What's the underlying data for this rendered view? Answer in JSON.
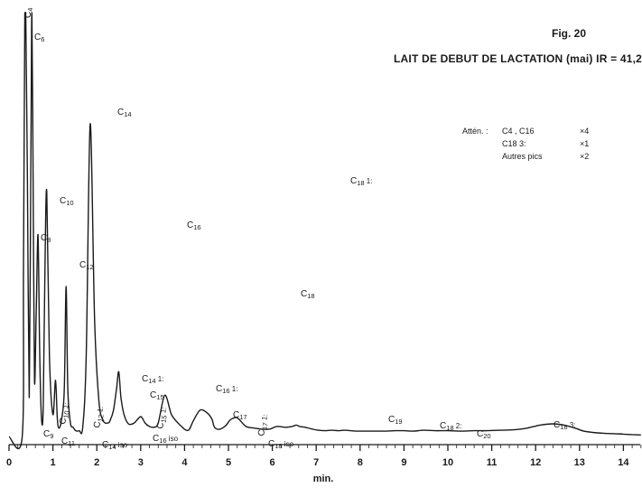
{
  "figure_label": "Fig. 20",
  "title": "LAIT DE DEBUT DE LACTATION (mai)  IR = 41,2",
  "attenuation": {
    "heading": "Attén. :",
    "rows": [
      {
        "label": "C4 , C16",
        "factor": "×4"
      },
      {
        "label": "C18 3:",
        "factor": "×1"
      },
      {
        "label": "Autres pics",
        "factor": "×2"
      }
    ]
  },
  "chart_data": {
    "type": "line",
    "title": "LAIT DE DEBUT DE LACTATION (mai)  IR = 41,2",
    "xlabel": "min.",
    "ylabel": "",
    "xlim": [
      0,
      14.4
    ],
    "ylim": [
      0,
      100
    ],
    "x_ticks": [
      0,
      1,
      2,
      3,
      4,
      5,
      6,
      7,
      8,
      9,
      10,
      11,
      12,
      13,
      14
    ],
    "grid": false,
    "series": [
      {
        "x": [
          0,
          0.3,
          0.33,
          0.36,
          0.38,
          0.42,
          0.46,
          0.5,
          0.52,
          0.55,
          0.58,
          0.62,
          0.66,
          0.7,
          0.74,
          0.78,
          0.82,
          0.86,
          0.92,
          1.0,
          1.06,
          1.1,
          1.14,
          1.2,
          1.26,
          1.3,
          1.34,
          1.4,
          1.46,
          1.52,
          1.6,
          1.68,
          1.76,
          1.85,
          1.95,
          2.05,
          2.15,
          2.25,
          2.3,
          2.38,
          2.45,
          2.5,
          2.55,
          2.62,
          2.72,
          2.85,
          3.0,
          3.1,
          3.2,
          3.3,
          3.4,
          3.55,
          3.7,
          3.85,
          3.95,
          4.02,
          4.1,
          4.2,
          4.35,
          4.5,
          4.62,
          4.66,
          4.7,
          4.78,
          4.86,
          4.95,
          5.05,
          5.2,
          5.4,
          5.6,
          5.8,
          5.95,
          6.1,
          6.3,
          6.45,
          6.55,
          6.62,
          6.75,
          6.9,
          7.05,
          7.2,
          7.35,
          7.5,
          7.65,
          7.78,
          7.9,
          8.05,
          8.2,
          8.4,
          8.6,
          8.8,
          9.0,
          9.2,
          9.45,
          9.7,
          10.0,
          10.3,
          10.6,
          10.9,
          11.2,
          11.5,
          11.8,
          12.1,
          12.4,
          12.65,
          12.9,
          13.1,
          13.3,
          13.55,
          13.8,
          14.0,
          14.2,
          14.4
        ],
        "y": [
          0.8,
          0.8,
          40,
          100,
          100,
          60,
          10,
          70,
          100,
          60,
          14,
          30,
          48,
          20,
          5,
          8,
          42,
          58,
          20,
          6,
          14,
          5,
          2.8,
          5,
          12,
          36,
          12,
          4,
          3,
          2.2,
          2.2,
          3,
          20,
          74,
          28,
          9,
          4.5,
          4,
          4.5,
          7,
          12,
          16,
          10,
          6,
          3.8,
          4,
          5.5,
          4,
          3.2,
          3,
          4,
          10.5,
          6,
          4,
          3,
          2.4,
          2.4,
          4.5,
          7,
          6.5,
          5,
          3.5,
          2.8,
          2.5,
          2.8,
          3.5,
          4.8,
          5.2,
          3.2,
          2.8,
          2.5,
          2.6,
          3.2,
          3,
          3.2,
          3.5,
          3.2,
          3,
          2.6,
          2.3,
          2.2,
          2.3,
          2.2,
          2.3,
          2.2,
          2.1,
          2.1,
          2.1,
          2.1,
          2.1,
          2.2,
          2.2,
          2.1,
          2.3,
          2.2,
          2.2,
          2.1,
          2.2,
          2.2,
          2.3,
          2.4,
          2.8,
          3.5,
          3.8,
          3.5,
          2.8,
          2.1,
          1.8,
          1.6,
          1.5,
          1.4,
          1.3,
          1.2
        ]
      }
    ],
    "annotations": [
      {
        "label": "C4",
        "x": 0.5
      },
      {
        "label": "C6",
        "x": 0.6
      },
      {
        "label": "C8",
        "x": 0.8
      },
      {
        "label": "C9",
        "x": 0.9
      },
      {
        "label": "C10",
        "x": 1.1
      },
      {
        "label": "C11",
        "x": 1.2
      },
      {
        "label": "C10 1:",
        "x": 1.3
      },
      {
        "label": "C12",
        "x": 1.6
      },
      {
        "label": "C12 1:",
        "x": 2.1
      },
      {
        "label": "C14 iso",
        "x": 2.2
      },
      {
        "label": "C14",
        "x": 2.5
      },
      {
        "label": "C14 1:",
        "x": 3.0
      },
      {
        "label": "C15",
        "x": 3.3
      },
      {
        "label": "C15 1:",
        "x": 3.6
      },
      {
        "label": "C16 iso",
        "x": 3.4
      },
      {
        "label": "C16",
        "x": 4.0
      },
      {
        "label": "C16 1:",
        "x": 4.7
      },
      {
        "label": "C17",
        "x": 5.1
      },
      {
        "label": "C17 1:",
        "x": 5.8
      },
      {
        "label": "C18 iso",
        "x": 6.0
      },
      {
        "label": "C18",
        "x": 6.6
      },
      {
        "label": "C18 1:",
        "x": 7.8
      },
      {
        "label": "C19",
        "x": 8.9
      },
      {
        "label": "C18 2:",
        "x": 9.9
      },
      {
        "label": "C20",
        "x": 10.9
      },
      {
        "label": "C18 3:",
        "x": 13.1
      }
    ]
  }
}
